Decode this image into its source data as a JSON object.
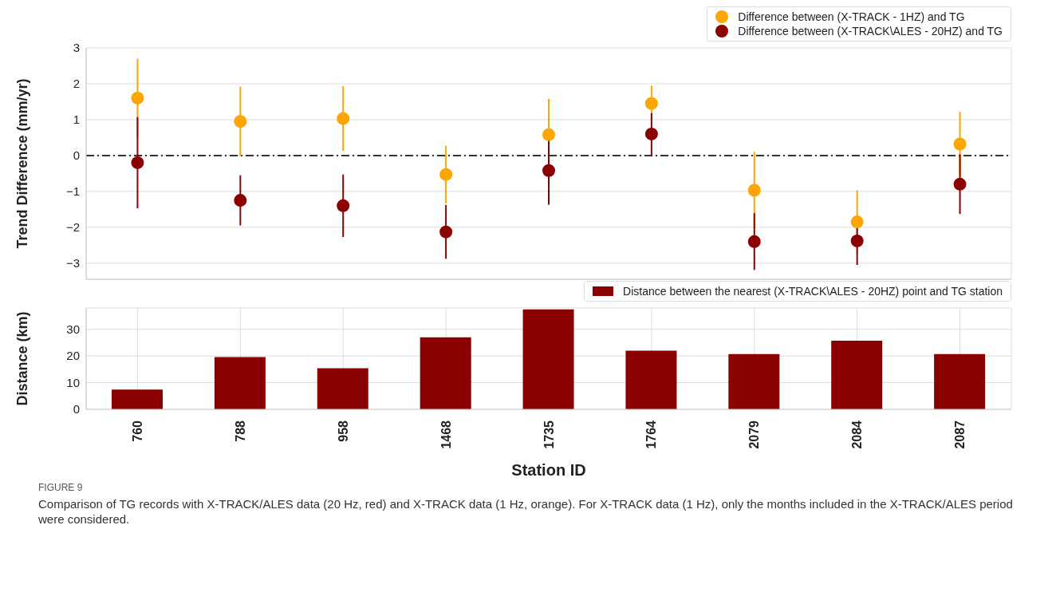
{
  "chart_data": [
    {
      "type": "scatter",
      "ylabel": "Trend Difference (mm/yr)",
      "categories": [
        "760",
        "788",
        "958",
        "1468",
        "1735",
        "1764",
        "2079",
        "2084",
        "2087"
      ],
      "ylim": [
        -3.45,
        3
      ],
      "yticks": [
        -3,
        -2,
        -1,
        0,
        1,
        2,
        3
      ],
      "grid": true,
      "legend": "top right",
      "marker": "circle",
      "tick_labels": "y",
      "series": [
        {
          "name": "Difference between (X-TRACK - 1HZ) and TG",
          "color": "#ffa500",
          "values": [
            1.6,
            0.95,
            1.03,
            -0.53,
            0.58,
            1.45,
            -0.97,
            -1.85,
            0.32
          ],
          "errors": [
            1.1,
            0.97,
            0.9,
            0.8,
            1.0,
            0.5,
            1.07,
            0.88,
            0.9
          ]
        },
        {
          "name": "Difference between (X-TRACK\\ALES - 20HZ) and TG",
          "color": "#8b0000",
          "values": [
            -0.2,
            -1.25,
            -1.4,
            -2.13,
            -0.42,
            0.6,
            -2.4,
            -2.38,
            -0.8
          ],
          "errors": [
            1.27,
            0.7,
            0.87,
            0.75,
            0.95,
            0.58,
            0.79,
            0.67,
            0.83
          ]
        }
      ],
      "ref_lines": [
        {
          "axis": "y",
          "value": 0,
          "color": "#333333",
          "line_style": "dashed"
        }
      ]
    },
    {
      "type": "bar",
      "ylabel": "Distance (km)",
      "xlabel": "Station ID",
      "categories": [
        "760",
        "788",
        "958",
        "1468",
        "1735",
        "1764",
        "2079",
        "2084",
        "2087"
      ],
      "ylim": [
        0,
        38
      ],
      "yticks": [
        0,
        10,
        20,
        30
      ],
      "grid": true,
      "legend": "top right",
      "series": [
        {
          "name": "Distance between the nearest (X-TRACK\\ALES - 20HZ) point and TG station",
          "color": "#8b0000",
          "values": [
            7.4,
            19.6,
            15.4,
            27,
            37.5,
            22,
            20.7,
            25.7,
            20.7
          ]
        }
      ],
      "annotations": [
        "FIGURE 9",
        "Comparison of TG records with X-TRACK/ALES data (20 Hz, red) and X-TRACK data (1 Hz, orange). For X-TRACK data (1 Hz), only the months included in the X-TRACK/ALES period were considered."
      ]
    }
  ]
}
